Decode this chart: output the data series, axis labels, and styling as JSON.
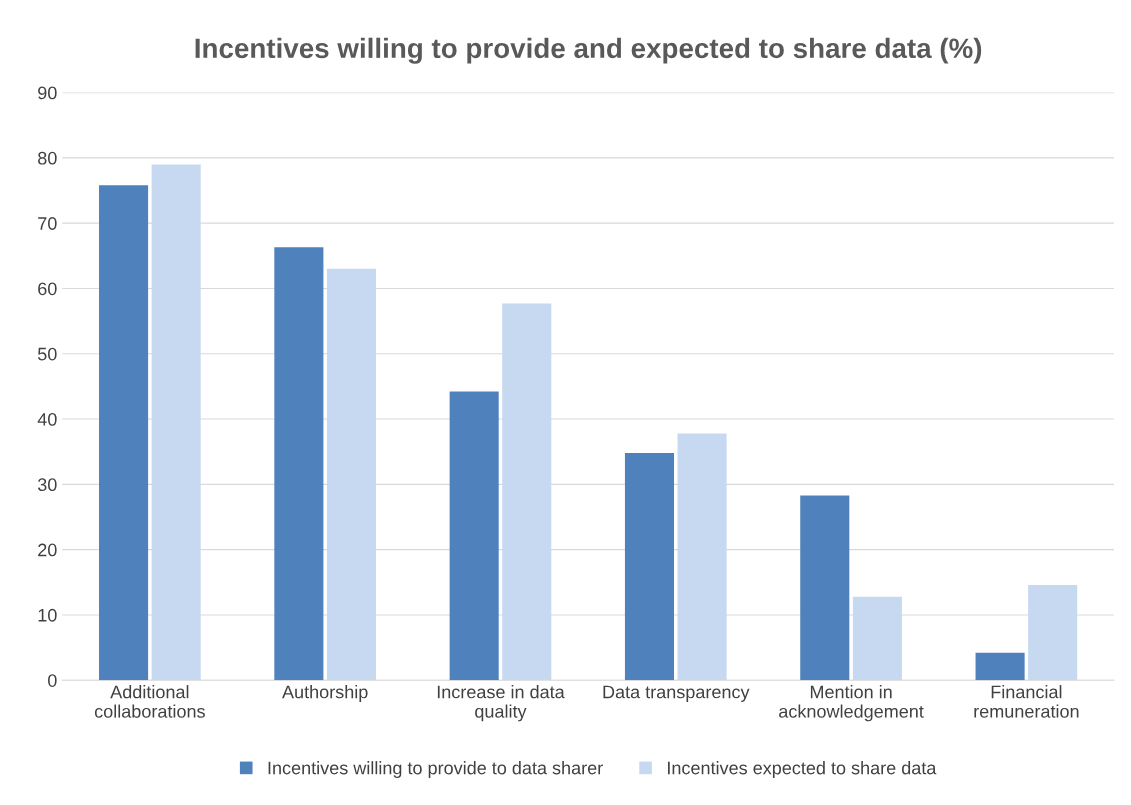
{
  "chart_data": {
    "type": "bar",
    "title": "Incentives willing to provide and expected to share data (%)",
    "categories": [
      "Additional collaborations",
      "Authorship",
      "Increase in data quality",
      "Data transparency",
      "Mention in acknowledgement",
      "Financial remuneration"
    ],
    "series": [
      {
        "name": "Incentives willing to provide to data sharer",
        "color": "#4f81bd",
        "values": [
          75.8,
          66.3,
          44.2,
          34.8,
          28.3,
          4.2
        ]
      },
      {
        "name": "Incentives expected to share data",
        "color": "#c6d9f1",
        "values": [
          79.0,
          63.0,
          57.7,
          37.8,
          12.8,
          14.6
        ]
      }
    ],
    "ylim": [
      0,
      90
    ],
    "yticks": [
      0,
      10,
      20,
      30,
      40,
      50,
      60,
      70,
      80,
      90
    ],
    "grid": "y",
    "legend": "bottom"
  }
}
